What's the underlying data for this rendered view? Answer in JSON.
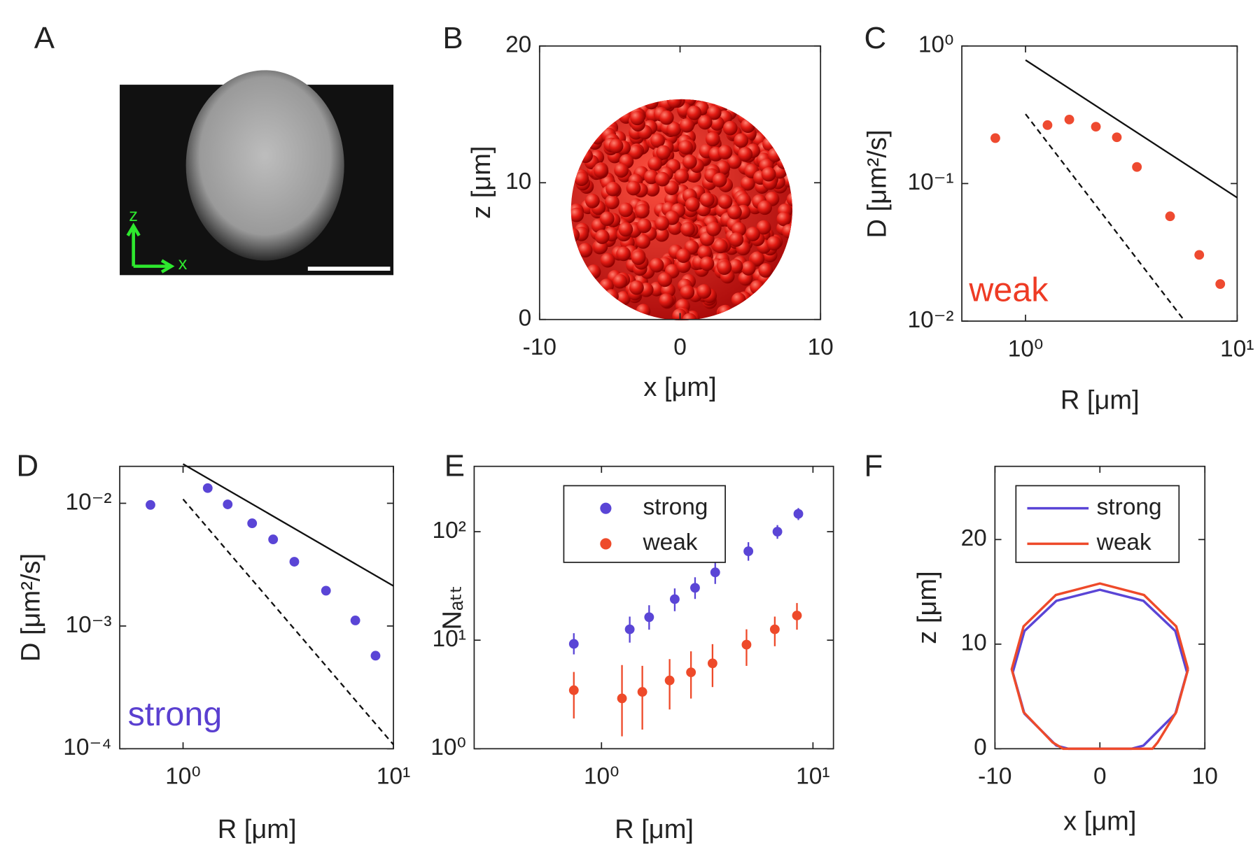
{
  "chart_data": [
    {
      "type": "image",
      "panel": "A",
      "axis_labels": [
        "z",
        "x"
      ]
    },
    {
      "type": "render",
      "panel": "B",
      "xlabel": "x [μm]",
      "ylabel": "z [μm]",
      "xlim": [
        -10,
        10
      ],
      "ylim": [
        0,
        20
      ],
      "xticks": [
        -10,
        0,
        10
      ],
      "yticks": [
        0,
        10,
        20
      ]
    },
    {
      "type": "scatter",
      "panel": "C",
      "log_x": true,
      "log_y": true,
      "xlabel": "R [μm]",
      "ylabel": "D [μm²/s]",
      "annotation": "weak",
      "annotation_color": "#ee3b24",
      "xlim": [
        0.5,
        10
      ],
      "ylim": [
        0.01,
        1
      ],
      "xticks": [
        {
          "value": 1,
          "label": "10⁰"
        },
        {
          "value": 10,
          "label": "10¹"
        }
      ],
      "yticks": [
        {
          "value": 0.01,
          "label": "10⁻²"
        },
        {
          "value": 0.1,
          "label": "10⁻¹"
        },
        {
          "value": 1,
          "label": "10⁰"
        }
      ],
      "series": [
        {
          "color": "#ee4a30",
          "x": [
            0.72,
            1.27,
            1.61,
            2.15,
            2.7,
            3.36,
            4.82,
            6.62,
            8.32
          ],
          "values": [
            0.214,
            0.266,
            0.292,
            0.259,
            0.217,
            0.132,
            0.0578,
            0.0303,
            0.0186
          ]
        }
      ],
      "lines": [
        {
          "style": "solid",
          "x": [
            1,
            10
          ],
          "values": [
            0.79,
            0.079
          ]
        },
        {
          "style": "dashed",
          "x": [
            1,
            5.6
          ],
          "values": [
            0.32,
            0.0102
          ]
        }
      ]
    },
    {
      "type": "scatter",
      "panel": "D",
      "log_x": true,
      "log_y": true,
      "xlabel": "R [μm]",
      "ylabel": "D [μm²/s]",
      "annotation": "strong",
      "annotation_color": "#5a3fd0",
      "xlim": [
        0.5,
        10
      ],
      "ylim": [
        0.0001,
        0.02
      ],
      "xticks": [
        {
          "value": 1,
          "label": "10⁰"
        },
        {
          "value": 10,
          "label": "10¹"
        }
      ],
      "yticks": [
        {
          "value": 0.0001,
          "label": "10⁻⁴"
        },
        {
          "value": 0.001,
          "label": "10⁻³"
        },
        {
          "value": 0.01,
          "label": "10⁻²"
        }
      ],
      "series": [
        {
          "color": "#5a45d6",
          "x": [
            0.7,
            1.31,
            1.63,
            2.13,
            2.68,
            3.38,
            4.78,
            6.59,
            8.22
          ],
          "values": [
            0.0097,
            0.0133,
            0.0098,
            0.00687,
            0.00508,
            0.00334,
            0.00194,
            0.00111,
            0.000573
          ]
        }
      ],
      "lines": [
        {
          "style": "solid",
          "x": [
            1,
            10
          ],
          "values": [
            0.0209,
            0.00212
          ]
        },
        {
          "style": "dashed",
          "x": [
            1,
            10
          ],
          "values": [
            0.0108,
            0.000108
          ]
        }
      ]
    },
    {
      "type": "scatter",
      "panel": "E",
      "log_x": true,
      "log_y": true,
      "xlabel": "R [μm]",
      "ylabel": "Nₐₜₜ",
      "legend": "north",
      "xlim": [
        0.25,
        12.5
      ],
      "ylim": [
        1,
        400
      ],
      "xticks": [
        {
          "value": 1,
          "label": "10⁰"
        },
        {
          "value": 10,
          "label": "10¹"
        }
      ],
      "yticks": [
        {
          "value": 1,
          "label": "10⁰"
        },
        {
          "value": 10,
          "label": "10¹"
        },
        {
          "value": 100,
          "label": "10²"
        }
      ],
      "series": [
        {
          "name": "strong",
          "color": "#5a45d6",
          "x": [
            0.74,
            1.36,
            1.68,
            2.22,
            2.77,
            3.45,
            4.95,
            6.79,
            8.53
          ],
          "values": [
            9.25,
            12.6,
            16.3,
            23.9,
            30.4,
            42.2,
            66,
            100,
            146
          ],
          "lower": [
            7.4,
            9.5,
            12.5,
            18.5,
            24,
            33,
            54,
            86,
            128
          ],
          "upper": [
            11.6,
            16.5,
            21,
            30,
            38,
            52,
            80,
            115,
            165
          ]
        },
        {
          "name": "weak",
          "color": "#ee4a2a",
          "x": [
            0.74,
            1.25,
            1.56,
            2.1,
            2.65,
            3.35,
            4.85,
            6.6,
            8.4
          ],
          "values": [
            3.46,
            2.91,
            3.34,
            4.26,
            5.06,
            6.12,
            9.1,
            12.6,
            16.9
          ],
          "lower": [
            1.9,
            1.3,
            1.5,
            2.3,
            2.9,
            3.7,
            5.8,
            8.8,
            12.5
          ],
          "upper": [
            5.1,
            5.9,
            5.8,
            6.7,
            7.9,
            9.2,
            12.6,
            16.5,
            22
          ]
        }
      ]
    },
    {
      "type": "line",
      "panel": "F",
      "xlabel": "x [μm]",
      "ylabel": "z [μm]",
      "legend": "north",
      "xlim": [
        -10,
        10
      ],
      "ylim": [
        0,
        27
      ],
      "xticks": [
        -10,
        0,
        10
      ],
      "yticks": [
        0,
        10,
        20
      ],
      "series": [
        {
          "name": "strong",
          "color": "#5a45d6",
          "x": [
            8.3,
            7.19,
            4.15,
            0,
            -4.15,
            -7.19,
            -8.3,
            -7.19,
            -4.15,
            -3,
            3,
            4.15,
            7.19,
            8.3
          ],
          "values": [
            7.3,
            11.25,
            14.14,
            15.2,
            14.14,
            11.25,
            7.3,
            3.35,
            0.3,
            0,
            0,
            0.3,
            3.35,
            7.3
          ]
        },
        {
          "name": "weak",
          "color": "#ee4a2a",
          "x": [
            8.4,
            7.27,
            4.2,
            0,
            -4.2,
            -7.27,
            -8.4,
            -7.27,
            -4.5,
            -3.5,
            5,
            5.5,
            7.27,
            8.4
          ],
          "values": [
            7.6,
            11.7,
            14.7,
            15.8,
            14.7,
            11.7,
            7.6,
            3.5,
            0.6,
            0,
            0,
            0.6,
            3.5,
            7.6
          ]
        }
      ]
    }
  ]
}
